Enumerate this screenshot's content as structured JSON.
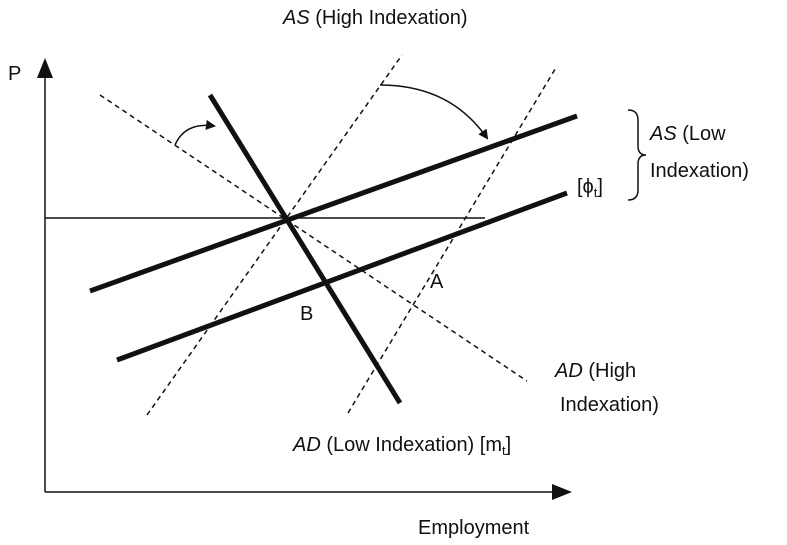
{
  "axes": {
    "y_label": "P",
    "x_label": "Employment"
  },
  "labels": {
    "as_high": {
      "symbol": "AS",
      "text": "(High Indexation)"
    },
    "as_low": {
      "symbol": "AS",
      "line1": "(Low",
      "line2": "Indexation)"
    },
    "phi": {
      "text": "[ϕ",
      "subscript": "t",
      "suffix": "]"
    },
    "point_a": "A",
    "point_b": "B",
    "ad_high": {
      "symbol": "AD",
      "line1": "(High",
      "line2": "Indexation)"
    },
    "ad_low": {
      "symbol": "AD",
      "text": "(Low Indexation) [m",
      "subscript": "t",
      "suffix": "]"
    }
  }
}
